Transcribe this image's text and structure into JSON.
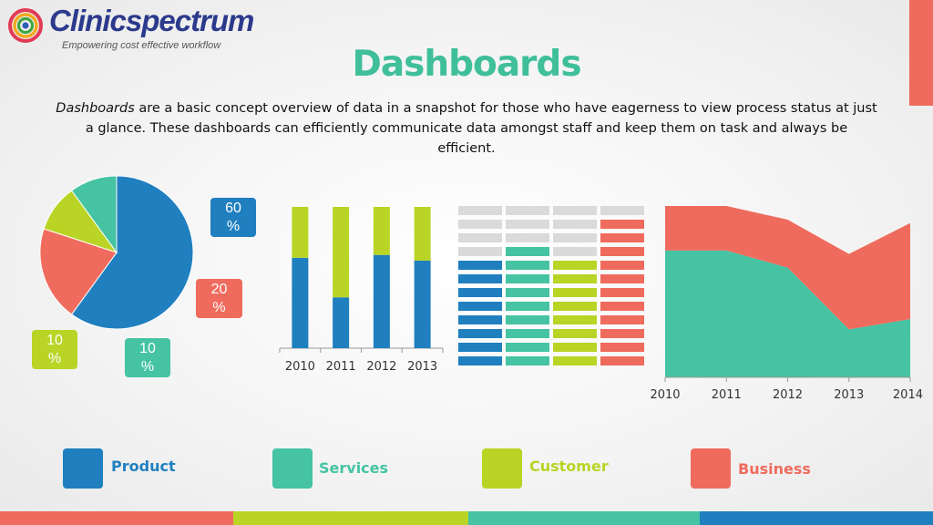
{
  "logo": {
    "name": "Clinicspectrum",
    "tagline": "Empowering cost effective workflow"
  },
  "title": "Dashboards",
  "description": {
    "lead": "Dashboards",
    "rest": " are a basic concept overview of data in a snapshot for those who have eagerness to view process status at just a glance. These dashboards can efficiently communicate data amongst staff and keep them on task and always be efficient."
  },
  "colors": {
    "product": "#1f7fbf",
    "services": "#45c3a3",
    "customer": "#b9d425",
    "business": "#ef6b5d",
    "empty": "#dadada"
  },
  "legend": [
    {
      "label": "Product",
      "color": "#1f7fbf"
    },
    {
      "label": "Services",
      "color": "#45c3a3"
    },
    {
      "label": "Customer",
      "color": "#b9d425"
    },
    {
      "label": "Business",
      "color": "#ef6b5d"
    }
  ],
  "chart_data": [
    {
      "type": "pie",
      "categories": [
        "Product",
        "Business",
        "Customer",
        "Services"
      ],
      "values": [
        60,
        20,
        10,
        10
      ],
      "labels": [
        "60 %",
        "20 %",
        "10 %",
        "10 %"
      ],
      "colors": [
        "#1f7fbf",
        "#ef6b5d",
        "#b9d425",
        "#45c3a3"
      ]
    },
    {
      "type": "bar",
      "stacked": true,
      "categories": [
        "2010",
        "2011",
        "2012",
        "2013"
      ],
      "series": [
        {
          "values": [
            64,
            36,
            66,
            62
          ],
          "color": "#1f7fbf"
        },
        {
          "values": [
            36,
            64,
            34,
            38
          ],
          "color": "#b9d425"
        }
      ],
      "ylim": [
        0,
        100
      ]
    },
    {
      "type": "table",
      "rows": 12,
      "columns": [
        {
          "filled": 8,
          "color": "#1f7fbf"
        },
        {
          "filled": 9,
          "color": "#45c3a3"
        },
        {
          "filled": 8,
          "color": "#b9d425"
        },
        {
          "filled": 11,
          "color": "#ef6b5d"
        }
      ]
    },
    {
      "type": "area",
      "stacked": true,
      "x": [
        "2010",
        "2011",
        "2012",
        "2013",
        "2014"
      ],
      "series": [
        {
          "values": [
            74,
            74,
            64,
            28,
            34
          ],
          "color": "#45c3a3"
        },
        {
          "values": [
            26,
            26,
            28,
            44,
            56
          ],
          "color": "#ef6b5d"
        }
      ],
      "ylim": [
        0,
        100
      ]
    }
  ]
}
